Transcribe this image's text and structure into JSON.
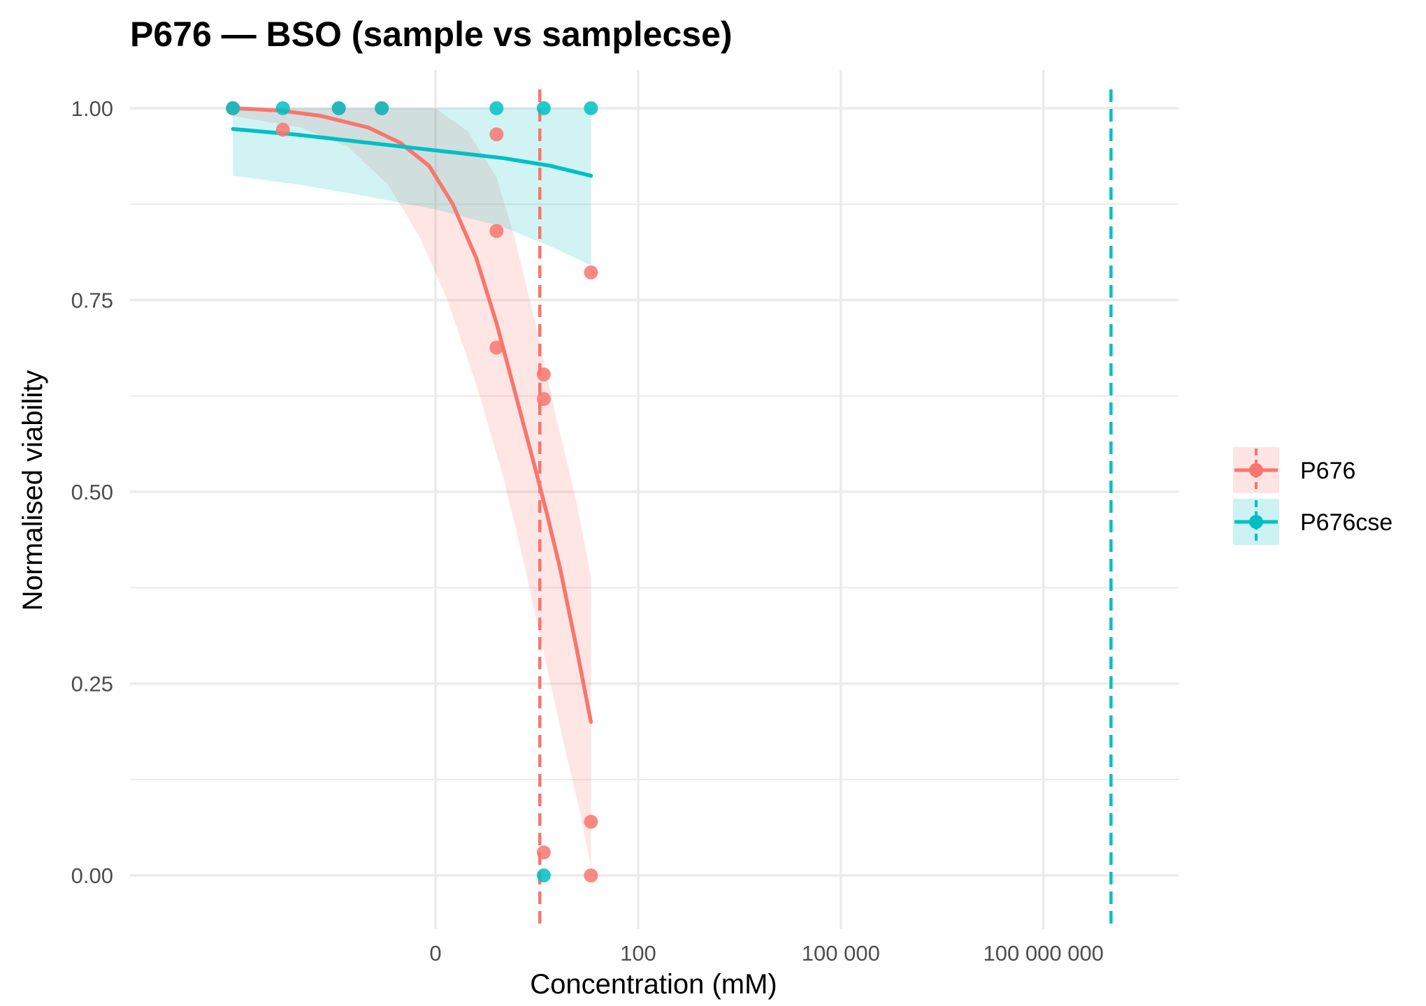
{
  "chart_data": {
    "type": "scatter",
    "title": "P676 — BSO (sample vs samplecse)",
    "xlabel": "Concentration (mM)",
    "ylabel": "Normalised viability",
    "x_scale": "log10",
    "xlim": [
      3e-06,
      10000000000
    ],
    "ylim": [
      -0.07,
      1.05
    ],
    "x_ticks": [
      {
        "value": 0.1,
        "label": "0"
      },
      {
        "value": 100,
        "label": "100"
      },
      {
        "value": 100000,
        "label": "100 000"
      },
      {
        "value": 100000000,
        "label": "100 000 000"
      }
    ],
    "y_ticks": [
      {
        "value": 0,
        "label": "0.00"
      },
      {
        "value": 0.25,
        "label": "0.25"
      },
      {
        "value": 0.5,
        "label": "0.50"
      },
      {
        "value": 0.75,
        "label": "0.75"
      },
      {
        "value": 1,
        "label": "1.00"
      }
    ],
    "grid": true,
    "legend": {
      "position": "right"
    },
    "series": [
      {
        "name": "P676",
        "color": "#F8766D",
        "points": [
          {
            "x": 0.0001,
            "y": 1.0
          },
          {
            "x": 0.0001,
            "y": 1.0
          },
          {
            "x": 0.00055,
            "y": 0.972
          },
          {
            "x": 0.0037,
            "y": 1.0
          },
          {
            "x": 0.016,
            "y": 1.0
          },
          {
            "x": 0.8,
            "y": 0.966
          },
          {
            "x": 0.8,
            "y": 0.84
          },
          {
            "x": 0.8,
            "y": 0.688
          },
          {
            "x": 4,
            "y": 0.653
          },
          {
            "x": 4,
            "y": 0.621
          },
          {
            "x": 4,
            "y": 0.03
          },
          {
            "x": 20,
            "y": 0.786
          },
          {
            "x": 20,
            "y": 0.07
          },
          {
            "x": 20,
            "y": 0.0
          }
        ],
        "fit": [
          {
            "x": 0.0001,
            "y": 1.0
          },
          {
            "x": 0.0005,
            "y": 0.997
          },
          {
            "x": 0.002,
            "y": 0.99
          },
          {
            "x": 0.01,
            "y": 0.975
          },
          {
            "x": 0.03,
            "y": 0.955
          },
          {
            "x": 0.08,
            "y": 0.925
          },
          {
            "x": 0.18,
            "y": 0.875
          },
          {
            "x": 0.4,
            "y": 0.805
          },
          {
            "x": 0.8,
            "y": 0.72
          },
          {
            "x": 1.5,
            "y": 0.63
          },
          {
            "x": 3,
            "y": 0.53
          },
          {
            "x": 4.5,
            "y": 0.47
          },
          {
            "x": 7,
            "y": 0.4
          },
          {
            "x": 12,
            "y": 0.3
          },
          {
            "x": 20,
            "y": 0.2
          }
        ],
        "ribbon_upper": [
          {
            "x": 0.0001,
            "y": 1.0
          },
          {
            "x": 0.001,
            "y": 1.0
          },
          {
            "x": 0.01,
            "y": 1.0
          },
          {
            "x": 0.1,
            "y": 1.0
          },
          {
            "x": 0.3,
            "y": 0.97
          },
          {
            "x": 0.8,
            "y": 0.91
          },
          {
            "x": 1.5,
            "y": 0.83
          },
          {
            "x": 3,
            "y": 0.72
          },
          {
            "x": 6,
            "y": 0.6
          },
          {
            "x": 12,
            "y": 0.49
          },
          {
            "x": 20,
            "y": 0.39
          }
        ],
        "ribbon_lower": [
          {
            "x": 0.0001,
            "y": 0.99
          },
          {
            "x": 0.001,
            "y": 0.975
          },
          {
            "x": 0.005,
            "y": 0.95
          },
          {
            "x": 0.02,
            "y": 0.9
          },
          {
            "x": 0.06,
            "y": 0.83
          },
          {
            "x": 0.15,
            "y": 0.75
          },
          {
            "x": 0.4,
            "y": 0.64
          },
          {
            "x": 1,
            "y": 0.52
          },
          {
            "x": 2,
            "y": 0.41
          },
          {
            "x": 4,
            "y": 0.29
          },
          {
            "x": 8,
            "y": 0.17
          },
          {
            "x": 14,
            "y": 0.08
          },
          {
            "x": 20,
            "y": 0.01
          }
        ],
        "ic50": 3.5
      },
      {
        "name": "P676cse",
        "color": "#00BFC4",
        "points": [
          {
            "x": 0.0001,
            "y": 1.0
          },
          {
            "x": 0.00055,
            "y": 1.0
          },
          {
            "x": 0.0037,
            "y": 1.0
          },
          {
            "x": 0.016,
            "y": 1.0
          },
          {
            "x": 0.8,
            "y": 1.0
          },
          {
            "x": 4,
            "y": 1.0
          },
          {
            "x": 20,
            "y": 1.0
          },
          {
            "x": 4,
            "y": 0.0
          }
        ],
        "fit": [
          {
            "x": 0.0001,
            "y": 0.973
          },
          {
            "x": 0.001,
            "y": 0.965
          },
          {
            "x": 0.01,
            "y": 0.955
          },
          {
            "x": 0.1,
            "y": 0.945
          },
          {
            "x": 1,
            "y": 0.935
          },
          {
            "x": 5,
            "y": 0.925
          },
          {
            "x": 20,
            "y": 0.912
          }
        ],
        "ribbon_upper": [
          {
            "x": 0.0001,
            "y": 1.0
          },
          {
            "x": 1,
            "y": 1.0
          },
          {
            "x": 20,
            "y": 1.0
          }
        ],
        "ribbon_lower": [
          {
            "x": 0.0001,
            "y": 0.912
          },
          {
            "x": 0.001,
            "y": 0.9
          },
          {
            "x": 0.01,
            "y": 0.885
          },
          {
            "x": 0.1,
            "y": 0.868
          },
          {
            "x": 1,
            "y": 0.845
          },
          {
            "x": 5,
            "y": 0.82
          },
          {
            "x": 20,
            "y": 0.795
          }
        ],
        "ic50": 1000000000
      }
    ]
  }
}
